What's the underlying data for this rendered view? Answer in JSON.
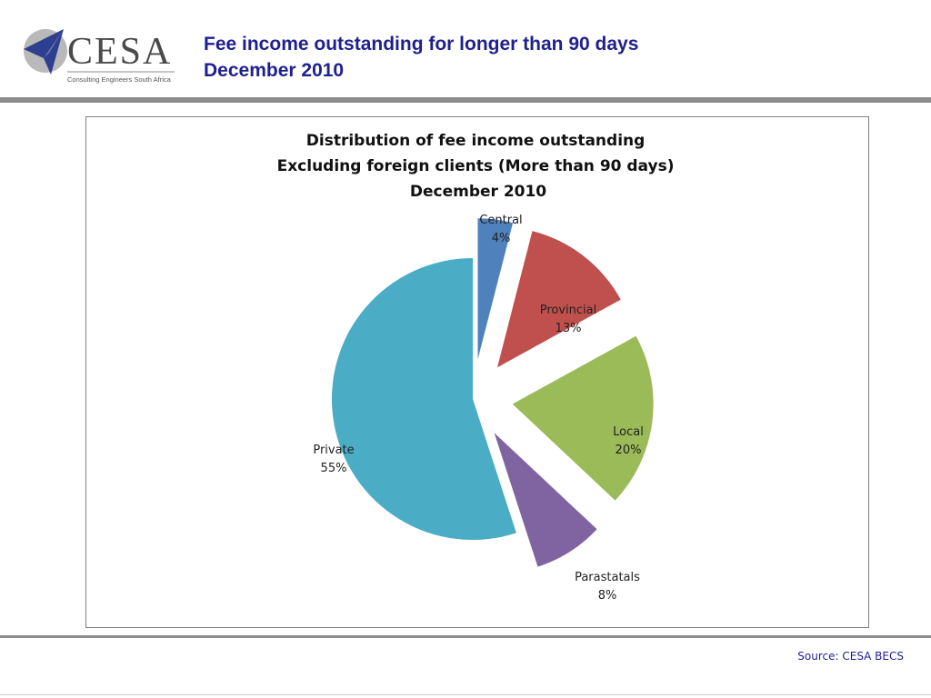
{
  "logo": {
    "name": "CESA",
    "tagline": "Consulting Engineers South Africa"
  },
  "header": {
    "title_line1": "Fee income outstanding for longer than 90 days",
    "title_line2": "December 2010"
  },
  "source": "Source: CESA BECS",
  "colors": {
    "header_text": "#1f1f8f",
    "rule": "#8c8c8c"
  },
  "chart_data": {
    "type": "pie",
    "title": [
      "Distribution of fee income outstanding",
      "Excluding foreign clients (More than 90 days)",
      "December 2010"
    ],
    "slices": [
      {
        "label": "Central",
        "value": 4,
        "display": "4%",
        "color": "#4f81bd",
        "exploded": true
      },
      {
        "label": "Provincial",
        "value": 13,
        "display": "13%",
        "color": "#c0504d",
        "exploded": true
      },
      {
        "label": "Local",
        "value": 20,
        "display": "20%",
        "color": "#9bbb59",
        "exploded": true
      },
      {
        "label": "Parastatals",
        "value": 8,
        "display": "8%",
        "color": "#8064a2",
        "exploded": true
      },
      {
        "label": "Private",
        "value": 55,
        "display": "55%",
        "color": "#4bacc6",
        "exploded": false
      }
    ],
    "legend": "none"
  }
}
